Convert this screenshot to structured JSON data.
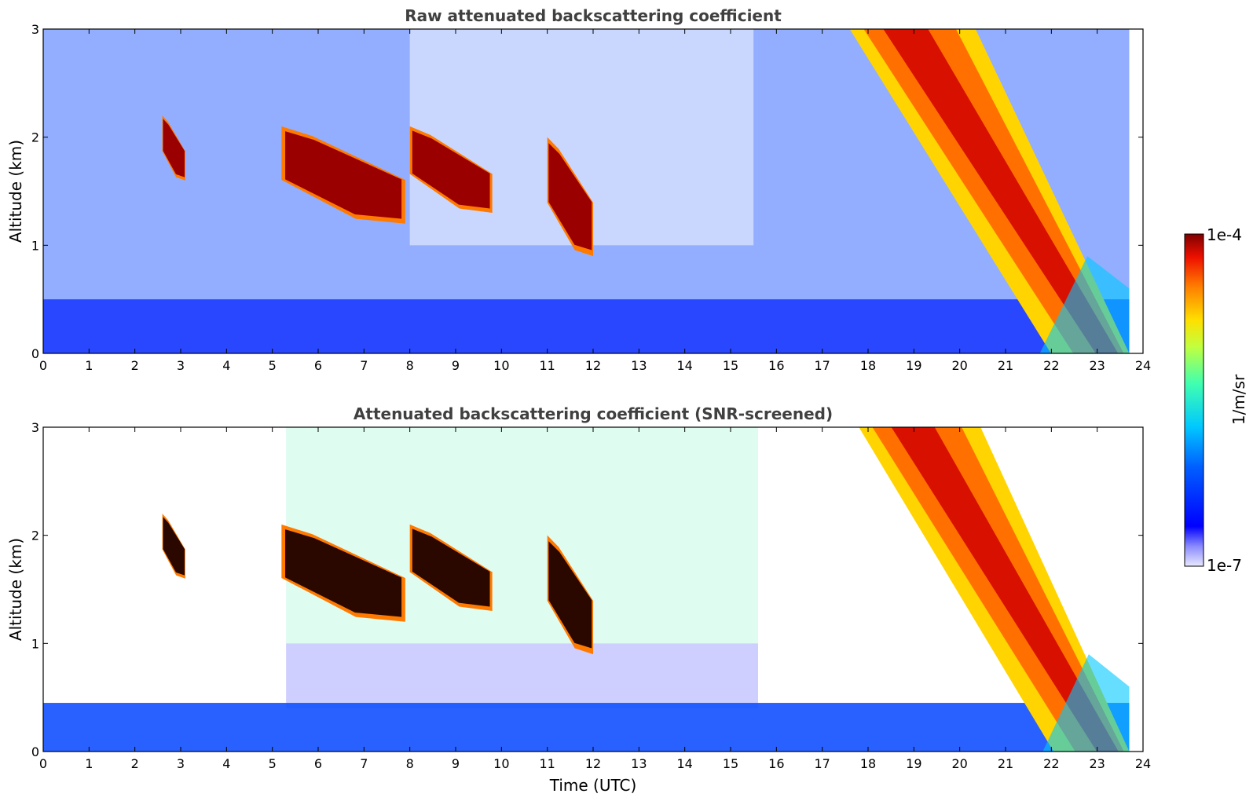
{
  "chart_data": [
    {
      "type": "heatmap",
      "title": "Raw attenuated backscattering coefficient",
      "xlabel": "",
      "ylabel": "Altitude (km)",
      "xlim": [
        0,
        24
      ],
      "ylim": [
        0,
        3
      ],
      "x_ticks": [
        "0",
        "1",
        "2",
        "3",
        "4",
        "5",
        "6",
        "7",
        "8",
        "9",
        "10",
        "11",
        "12",
        "13",
        "14",
        "15",
        "16",
        "17",
        "18",
        "19",
        "20",
        "21",
        "22",
        "23",
        "24"
      ],
      "y_ticks": [
        "0",
        "1",
        "2",
        "3"
      ],
      "features": [
        {
          "kind": "boundary_layer",
          "t": [
            0,
            24
          ],
          "top_km": 0.5
        },
        {
          "kind": "cloud_layer",
          "t": [
            2.6,
            3.1
          ],
          "alt_km": [
            1.6,
            2.2
          ]
        },
        {
          "kind": "cloud_layer",
          "t": [
            5.2,
            7.9
          ],
          "alt_km": [
            1.2,
            2.1
          ]
        },
        {
          "kind": "cloud_layer",
          "t": [
            8.0,
            9.8
          ],
          "alt_km": [
            1.3,
            2.1
          ]
        },
        {
          "kind": "cloud_layer",
          "t": [
            11.0,
            12.0
          ],
          "alt_km": [
            0.9,
            2.0
          ]
        },
        {
          "kind": "precipitating_cloud",
          "t": [
            17.6,
            23.7
          ],
          "alt_km": [
            0,
            3
          ]
        }
      ]
    },
    {
      "type": "heatmap",
      "title": "Attenuated backscattering coefficient (SNR-screened)",
      "xlabel": "Time (UTC)",
      "ylabel": "Altitude (km)",
      "xlim": [
        0,
        24
      ],
      "ylim": [
        0,
        3
      ],
      "x_ticks": [
        "0",
        "1",
        "2",
        "3",
        "4",
        "5",
        "6",
        "7",
        "8",
        "9",
        "10",
        "11",
        "12",
        "13",
        "14",
        "15",
        "16",
        "17",
        "18",
        "19",
        "20",
        "21",
        "22",
        "23",
        "24"
      ],
      "y_ticks": [
        "0",
        "1",
        "2",
        "3"
      ],
      "features": [
        {
          "kind": "boundary_layer",
          "t": [
            0,
            24
          ],
          "top_km": 0.45
        },
        {
          "kind": "cloud_layer",
          "t": [
            2.6,
            3.1
          ],
          "alt_km": [
            1.6,
            2.2
          ]
        },
        {
          "kind": "cloud_layer",
          "t": [
            5.2,
            7.9
          ],
          "alt_km": [
            1.2,
            2.1
          ]
        },
        {
          "kind": "cloud_layer",
          "t": [
            8.0,
            9.8
          ],
          "alt_km": [
            1.3,
            2.1
          ]
        },
        {
          "kind": "cloud_layer",
          "t": [
            11.0,
            12.0
          ],
          "alt_km": [
            0.9,
            2.0
          ]
        },
        {
          "kind": "precipitating_cloud",
          "t": [
            17.8,
            23.7
          ],
          "alt_km": [
            0,
            3
          ]
        }
      ]
    }
  ],
  "colorbar": {
    "label": "1/m/sr",
    "max_label": "1e-4",
    "min_label": "1e-7",
    "colormap": "jet"
  }
}
